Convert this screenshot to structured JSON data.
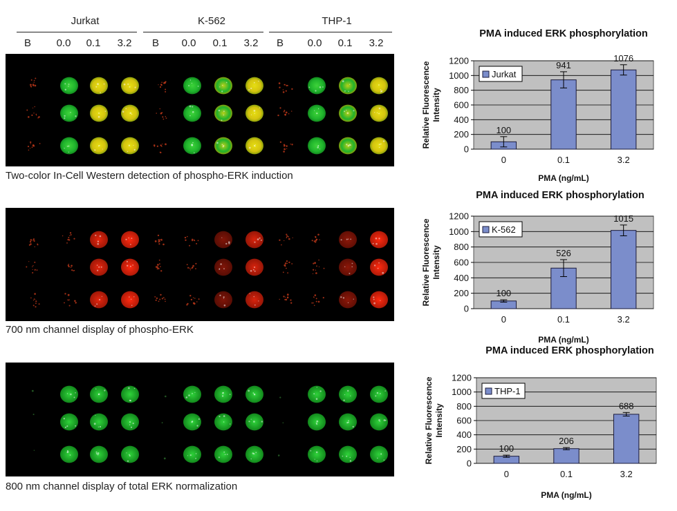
{
  "header": {
    "groups": [
      {
        "name": "Jurkat",
        "lanes": [
          "B",
          "0.0",
          "0.1",
          "3.2"
        ]
      },
      {
        "name": "K-562",
        "lanes": [
          "B",
          "0.0",
          "0.1",
          "3.2"
        ]
      },
      {
        "name": "THP-1",
        "lanes": [
          "B",
          "0.0",
          "0.1",
          "3.2"
        ]
      }
    ]
  },
  "panels": [
    {
      "caption": "Two-color In-Cell Western detection of phospho-ERK induction",
      "mode": "two-color"
    },
    {
      "caption": "700 nm channel display of phospho-ERK",
      "mode": "red"
    },
    {
      "caption": "800 nm channel display of total ERK normalization",
      "mode": "green"
    }
  ],
  "colors": {
    "bar_fill": "#7b8dcb",
    "bar_stroke": "#1a1a3a",
    "plot_bg": "#c0c0c0",
    "well_green": "#1fb32c",
    "well_yellow": "#e6de12",
    "well_red": "#ff2a10"
  },
  "chart_data": [
    {
      "type": "bar",
      "title": "PMA induced ERK phosphorylation",
      "xlabel": "PMA (ng/mL)",
      "ylabel": "Relative Fluorescence Intensity",
      "categories": [
        "0",
        "0.1",
        "3.2"
      ],
      "series": [
        {
          "name": "Jurkat",
          "values": [
            100,
            941,
            1076
          ],
          "errors": [
            70,
            110,
            70
          ],
          "labels": [
            "100",
            "941",
            "1076"
          ]
        }
      ],
      "ylim": [
        0,
        1200
      ],
      "yticks": [
        "0",
        "200",
        "400",
        "600",
        "800",
        "1000",
        "1200"
      ],
      "grid": true,
      "legend": "top-left"
    },
    {
      "type": "bar",
      "title": "PMA induced ERK phosphorylation",
      "xlabel": "PMA (ng/mL)",
      "ylabel": "Relative Fluorescence Intensity",
      "categories": [
        "0",
        "0.1",
        "3.2"
      ],
      "series": [
        {
          "name": "K-562",
          "values": [
            100,
            526,
            1015
          ],
          "errors": [
            15,
            110,
            70
          ],
          "labels": [
            "100",
            "526",
            "1015"
          ]
        }
      ],
      "ylim": [
        0,
        1200
      ],
      "yticks": [
        "0",
        "200",
        "400",
        "600",
        "800",
        "1000",
        "1200"
      ],
      "grid": true,
      "legend": "top-left"
    },
    {
      "type": "bar",
      "title": "PMA induced ERK phosphorylation",
      "xlabel": "PMA (ng/mL)",
      "ylabel": "Relative Fluorescence Intensity",
      "categories": [
        "0",
        "0.1",
        "3.2"
      ],
      "series": [
        {
          "name": "THP-1",
          "values": [
            100,
            206,
            688
          ],
          "errors": [
            15,
            15,
            25
          ],
          "labels": [
            "100",
            "206",
            "688"
          ]
        }
      ],
      "ylim": [
        0,
        1200
      ],
      "yticks": [
        "0",
        "200",
        "400",
        "600",
        "800",
        "1000",
        "1200"
      ],
      "grid": true,
      "legend": "top-left"
    }
  ]
}
